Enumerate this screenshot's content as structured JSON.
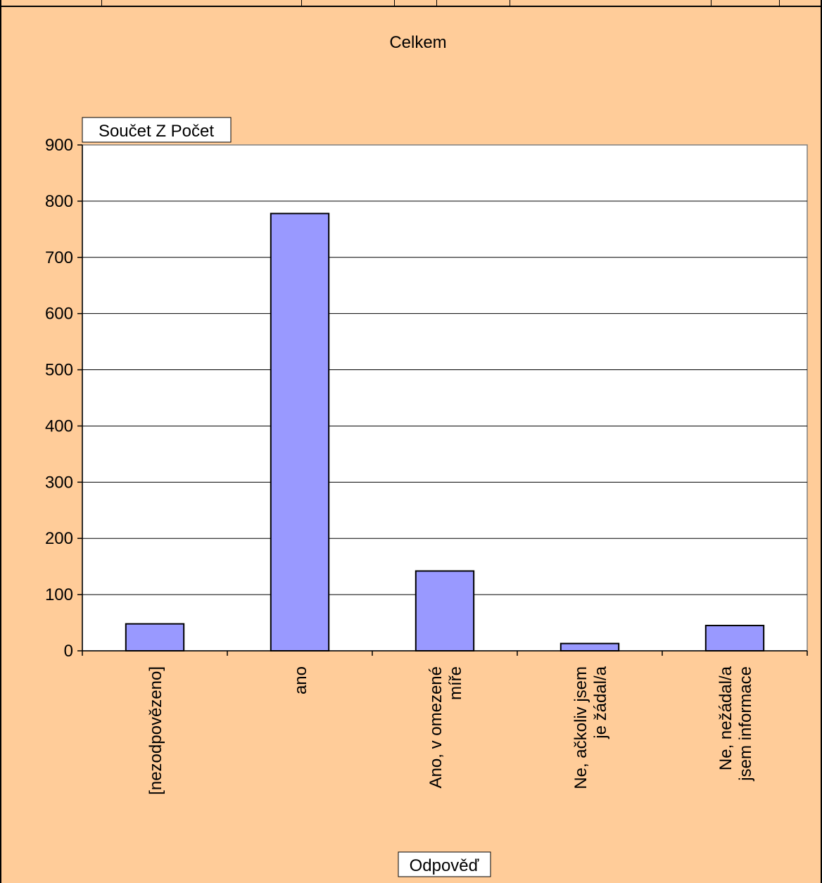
{
  "colors": {
    "background": "#ffcc99",
    "plot_area": "#ffffff",
    "bar_fill": "#9999ff",
    "bar_stroke": "#000000"
  },
  "chart_data": {
    "type": "bar",
    "title": "Celkem",
    "ylabel": "Součet Z Počet",
    "xlabel": "Odpověď",
    "ylim": [
      0,
      900
    ],
    "yticks": [
      0,
      100,
      200,
      300,
      400,
      500,
      600,
      700,
      800,
      900
    ],
    "grid": true,
    "categories": [
      {
        "lines": [
          "[nezodpovězeno]"
        ]
      },
      {
        "lines": [
          "ano"
        ]
      },
      {
        "lines": [
          "Ano, v omezené",
          "míře"
        ]
      },
      {
        "lines": [
          "Ne, ačkoliv jsem",
          "je žádal/a"
        ]
      },
      {
        "lines": [
          "Ne, nežádal/a",
          "jsem informace"
        ]
      }
    ],
    "values": [
      48,
      778,
      142,
      13,
      45
    ]
  }
}
